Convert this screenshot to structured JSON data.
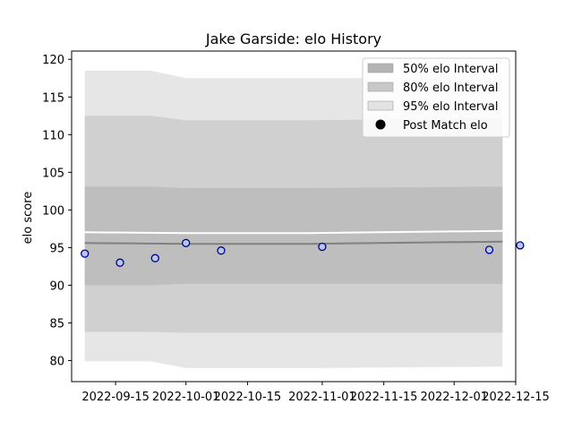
{
  "chart_data": {
    "type": "scatter",
    "title": "Jake Garside: elo History",
    "xlabel": "",
    "ylabel": "elo score",
    "x_type": "date",
    "xlim": [
      "2022-09-05",
      "2022-12-15"
    ],
    "ylim": [
      77.2,
      121.1
    ],
    "x_ticks": [
      "2022-09-15",
      "2022-10-01",
      "2022-10-15",
      "2022-11-01",
      "2022-11-15",
      "2022-12-01",
      "2022-12-15"
    ],
    "y_ticks": [
      80,
      85,
      90,
      95,
      100,
      105,
      110,
      115,
      120
    ],
    "grid": false,
    "legend_position": "top-right",
    "legend": [
      {
        "label": "50% elo Interval",
        "swatch": "#b4b4b4"
      },
      {
        "label": "80% elo Interval",
        "swatch": "#c8c8c8"
      },
      {
        "label": "95% elo Interval",
        "swatch": "#e2e2e2"
      },
      {
        "label": "Post Match elo",
        "swatch": "#000000"
      }
    ],
    "bands": [
      {
        "name": "95% elo Interval",
        "color": "#e6e6e6",
        "x": [
          "2022-09-08",
          "2022-09-23",
          "2022-10-01",
          "2022-10-29",
          "2022-12-12"
        ],
        "upper": [
          118.5,
          118.5,
          117.5,
          117.5,
          117.5
        ],
        "lower": [
          79.9,
          79.9,
          79.0,
          79.0,
          79.2
        ]
      },
      {
        "name": "80% elo Interval",
        "color": "#d0d0d0",
        "x": [
          "2022-09-08",
          "2022-09-23",
          "2022-10-01",
          "2022-10-29",
          "2022-12-12"
        ],
        "upper": [
          112.5,
          112.5,
          111.9,
          111.9,
          112.2
        ],
        "lower": [
          83.8,
          83.8,
          83.7,
          83.7,
          83.7
        ]
      },
      {
        "name": "50% elo Interval",
        "color": "#bebebe",
        "x": [
          "2022-09-08",
          "2022-09-23",
          "2022-10-01",
          "2022-10-29",
          "2022-12-12"
        ],
        "upper": [
          103.1,
          103.1,
          102.9,
          102.9,
          103.1
        ],
        "lower": [
          90.0,
          90.0,
          90.2,
          90.2,
          90.2
        ]
      }
    ],
    "mean_line": {
      "x": [
        "2022-09-08",
        "2022-10-01",
        "2022-10-29",
        "2022-12-12"
      ],
      "y": [
        95.6,
        95.5,
        95.5,
        95.8
      ],
      "color": "#808080"
    },
    "series": [
      {
        "name": "Post Match elo",
        "x": [
          "2022-09-08",
          "2022-09-16",
          "2022-09-24",
          "2022-10-01",
          "2022-10-09",
          "2022-11-01",
          "2022-12-09",
          "2022-12-16"
        ],
        "y": [
          94.2,
          93.0,
          93.6,
          95.6,
          94.6,
          95.1,
          94.7,
          95.3
        ]
      }
    ]
  }
}
